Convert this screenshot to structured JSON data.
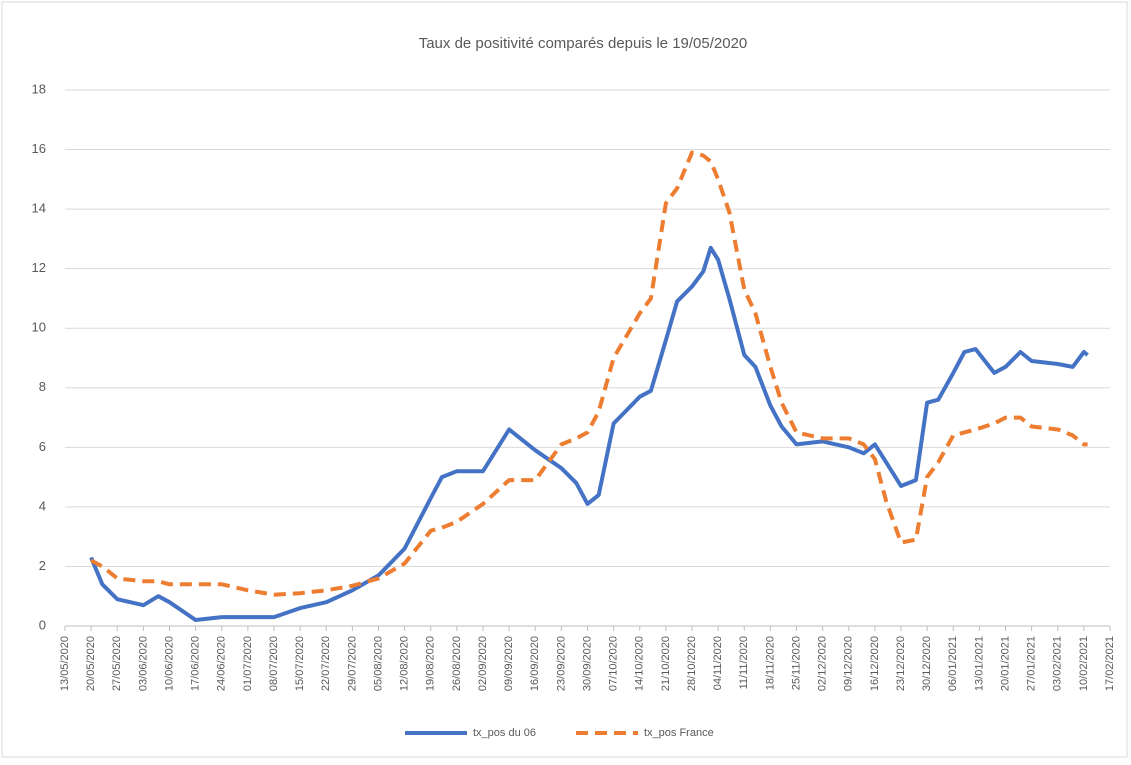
{
  "chart_data": {
    "type": "line",
    "title": "Taux de positivité comparés depuis le 19/05/2020",
    "x": [
      "20/05/2020",
      "23/05/2020",
      "27/05/2020",
      "03/06/2020",
      "07/06/2020",
      "10/06/2020",
      "17/06/2020",
      "24/06/2020",
      "01/07/2020",
      "08/07/2020",
      "15/07/2020",
      "22/07/2020",
      "29/07/2020",
      "05/08/2020",
      "12/08/2020",
      "19/08/2020",
      "22/08/2020",
      "26/08/2020",
      "02/09/2020",
      "09/09/2020",
      "16/09/2020",
      "23/09/2020",
      "27/09/2020",
      "30/09/2020",
      "03/10/2020",
      "07/10/2020",
      "14/10/2020",
      "17/10/2020",
      "21/10/2020",
      "24/10/2020",
      "28/10/2020",
      "31/10/2020",
      "02/11/2020",
      "04/11/2020",
      "07/11/2020",
      "11/11/2020",
      "14/11/2020",
      "18/11/2020",
      "21/11/2020",
      "25/11/2020",
      "02/12/2020",
      "09/12/2020",
      "13/12/2020",
      "16/12/2020",
      "19/12/2020",
      "23/12/2020",
      "27/12/2020",
      "30/12/2020",
      "02/01/2021",
      "06/01/2021",
      "09/01/2021",
      "12/01/2021",
      "17/01/2021",
      "20/01/2021",
      "24/01/2021",
      "27/01/2021",
      "03/02/2021",
      "07/02/2021",
      "10/02/2021",
      "11/02/2021"
    ],
    "series": [
      {
        "name": "tx_pos du 06",
        "color": "#4472c4",
        "style": "solid",
        "values": [
          2.3,
          1.4,
          0.9,
          0.7,
          1.0,
          0.8,
          0.2,
          0.3,
          0.3,
          0.3,
          0.6,
          0.8,
          1.2,
          1.7,
          2.6,
          4.3,
          5.0,
          5.2,
          5.2,
          6.6,
          5.9,
          5.3,
          4.8,
          4.1,
          4.4,
          6.8,
          7.7,
          7.9,
          9.6,
          10.9,
          11.4,
          11.9,
          12.7,
          12.3,
          11.0,
          9.1,
          8.7,
          7.4,
          6.7,
          6.1,
          6.2,
          6.0,
          5.8,
          6.1,
          5.5,
          4.7,
          4.9,
          7.5,
          7.6,
          8.5,
          9.2,
          9.3,
          8.5,
          8.7,
          9.2,
          8.9,
          8.8,
          8.7,
          9.2,
          9.1
        ]
      },
      {
        "name": "tx_pos France",
        "color": "#ed7d31",
        "style": "dashed",
        "values": [
          2.2,
          2.0,
          1.6,
          1.5,
          1.5,
          1.4,
          1.4,
          1.4,
          1.2,
          1.05,
          1.1,
          1.2,
          1.35,
          1.6,
          2.1,
          3.2,
          3.3,
          3.5,
          4.1,
          4.9,
          4.9,
          6.1,
          6.3,
          6.5,
          7.2,
          9.0,
          10.5,
          11.0,
          14.2,
          14.7,
          15.9,
          15.8,
          15.6,
          15.0,
          13.9,
          11.3,
          10.5,
          8.7,
          7.5,
          6.5,
          6.3,
          6.3,
          6.1,
          5.6,
          4.2,
          2.8,
          2.9,
          5.0,
          5.5,
          6.4,
          6.5,
          6.6,
          6.8,
          7.0,
          7.0,
          6.7,
          6.6,
          6.4,
          6.1,
          6.1
        ]
      }
    ],
    "xlim": [
      "13/05/2020",
      "17/02/2021"
    ],
    "xticks": [
      "13/05/2020",
      "20/05/2020",
      "27/05/2020",
      "03/06/2020",
      "10/06/2020",
      "17/06/2020",
      "24/06/2020",
      "01/07/2020",
      "08/07/2020",
      "15/07/2020",
      "22/07/2020",
      "29/07/2020",
      "05/08/2020",
      "12/08/2020",
      "19/08/2020",
      "26/08/2020",
      "02/09/2020",
      "09/09/2020",
      "16/09/2020",
      "23/09/2020",
      "30/09/2020",
      "07/10/2020",
      "14/10/2020",
      "21/10/2020",
      "28/10/2020",
      "04/11/2020",
      "11/11/2020",
      "18/11/2020",
      "25/11/2020",
      "02/12/2020",
      "09/12/2020",
      "16/12/2020",
      "23/12/2020",
      "30/12/2020",
      "06/01/2021",
      "13/01/2021",
      "20/01/2021",
      "27/01/2021",
      "03/02/2021",
      "10/02/2021",
      "17/02/2021"
    ],
    "ylim": [
      0,
      18
    ],
    "yticks": [
      0,
      2,
      4,
      6,
      8,
      10,
      12,
      14,
      16,
      18
    ],
    "grid": true,
    "legend": "bottom"
  }
}
